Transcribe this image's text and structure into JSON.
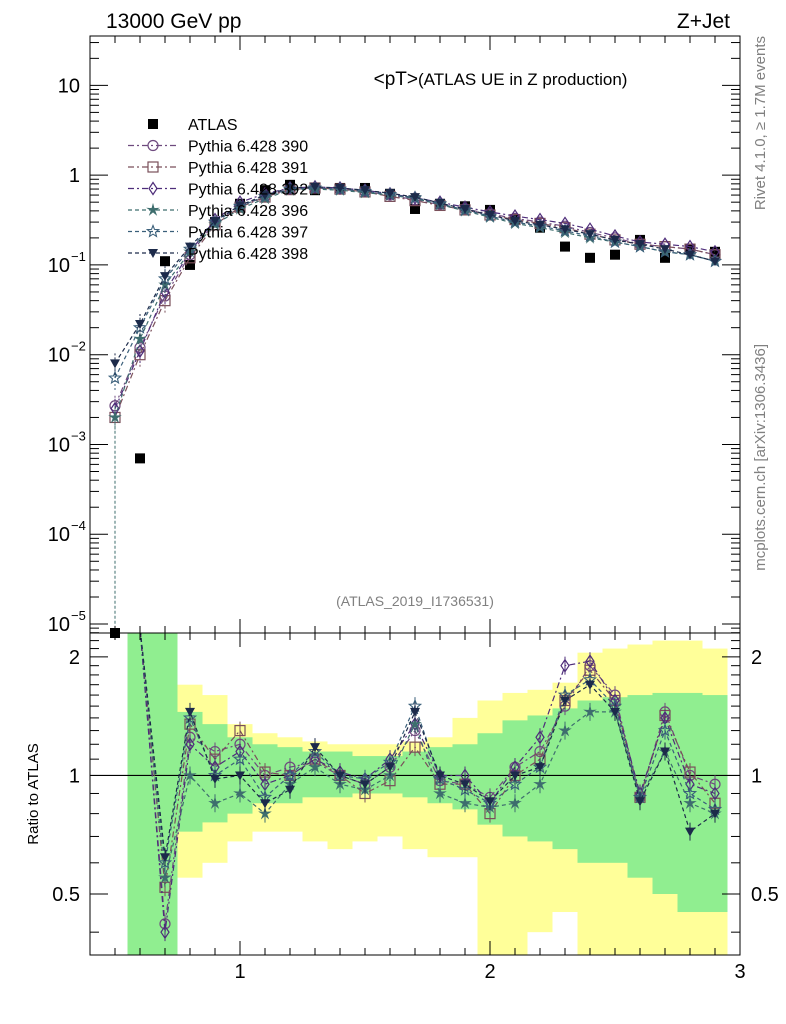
{
  "header": {
    "energy": "13000 GeV pp",
    "process": "Z+Jet"
  },
  "side_text": {
    "rivet": "Rivet 4.1.0, ≥ 1.7M events",
    "mcplots": "mcplots.cern.ch [arXiv:1306.3436]"
  },
  "chart_data": {
    "type": "scatter",
    "title": "<pT> (ATLAS UE in Z production)",
    "title_main": "<pT>",
    "title_sub": " (ATLAS UE in Z production)",
    "analysis_id": "(ATLAS_2019_I1736531)",
    "xlim": [
      0.4,
      3.0
    ],
    "x_ticks": [
      "1",
      "2",
      "3"
    ],
    "x_tick_values": [
      1,
      2,
      3
    ],
    "main_ylim_log10": [
      -5.1,
      1.55
    ],
    "main_y_ticks": [
      {
        "exp": 1,
        "label": "10"
      },
      {
        "exp": 0,
        "label": "1"
      },
      {
        "exp": -1,
        "label": "10",
        "sup": "−1"
      },
      {
        "exp": -2,
        "label": "10",
        "sup": "−2"
      },
      {
        "exp": -3,
        "label": "10",
        "sup": "−3"
      },
      {
        "exp": -4,
        "label": "10",
        "sup": "−4"
      },
      {
        "exp": -5,
        "label": "10",
        "sup": "−5"
      }
    ],
    "ratio_ylabel": "Ratio to ATLAS",
    "ratio_ylim": [
      0.35,
      2.3
    ],
    "ratio_y_ticks": [
      "0.5",
      "1",
      "2"
    ],
    "ratio_y_tick_values": [
      0.5,
      1,
      2
    ],
    "x": [
      0.5,
      0.6,
      0.7,
      0.8,
      0.9,
      1.0,
      1.1,
      1.2,
      1.3,
      1.4,
      1.5,
      1.6,
      1.7,
      1.8,
      1.9,
      2.0,
      2.1,
      2.2,
      2.3,
      2.4,
      2.5,
      2.6,
      2.7,
      2.8,
      2.9
    ],
    "bin_edges": [
      0.55,
      0.65,
      0.75,
      0.85,
      0.95,
      1.05,
      1.15,
      1.25,
      1.35,
      1.45,
      1.55,
      1.65,
      1.75,
      1.85,
      1.95,
      2.05,
      2.15,
      2.25,
      2.35,
      2.45,
      2.55,
      2.65,
      2.75,
      2.85,
      2.95
    ],
    "band_inner_lo": [
      0.3,
      0.3,
      0.72,
      0.76,
      0.8,
      0.85,
      0.85,
      0.88,
      0.88,
      0.9,
      0.9,
      0.88,
      0.85,
      0.82,
      0.75,
      0.7,
      0.68,
      0.65,
      0.6,
      0.6,
      0.55,
      0.5,
      0.45,
      0.45
    ],
    "band_inner_hi": [
      2.3,
      2.3,
      1.45,
      1.35,
      1.25,
      1.2,
      1.18,
      1.15,
      1.15,
      1.12,
      1.12,
      1.15,
      1.18,
      1.2,
      1.28,
      1.38,
      1.42,
      1.48,
      1.55,
      1.58,
      1.6,
      1.62,
      1.62,
      1.6
    ],
    "band_outer_lo": [
      0.3,
      0.3,
      0.55,
      0.6,
      0.68,
      0.72,
      0.72,
      0.68,
      0.65,
      0.68,
      0.7,
      0.65,
      0.62,
      0.62,
      0.35,
      0.35,
      0.4,
      0.45,
      0.35,
      0.35,
      0.3,
      0.35,
      0.3,
      0.35
    ],
    "band_outer_hi": [
      2.3,
      2.3,
      1.7,
      1.6,
      1.35,
      1.28,
      1.25,
      1.22,
      1.2,
      1.2,
      1.2,
      1.22,
      1.25,
      1.4,
      1.55,
      1.62,
      1.65,
      1.72,
      2.05,
      2.1,
      2.15,
      2.2,
      2.2,
      2.1
    ],
    "series": [
      {
        "name": "ATLAS",
        "marker": "square-filled",
        "color": "#000000",
        "values": [
          7.2e-06,
          0.0007,
          0.11,
          0.1,
          0.3,
          0.48,
          0.68,
          0.78,
          0.68,
          0.72,
          0.72,
          0.62,
          0.42,
          0.48,
          0.45,
          0.41,
          0.32,
          0.26,
          0.16,
          0.12,
          0.13,
          0.19,
          0.12,
          0.15,
          0.14
        ]
      },
      {
        "name": "Pythia 6.428 390",
        "marker": "circle-open",
        "color": "#6e4a7e",
        "dash": "6,3,2,3",
        "values": [
          0.0027,
          0.012,
          0.045,
          0.13,
          0.3,
          0.45,
          0.58,
          0.7,
          0.72,
          0.7,
          0.66,
          0.6,
          0.53,
          0.47,
          0.42,
          0.37,
          0.33,
          0.3,
          0.27,
          0.23,
          0.2,
          0.17,
          0.16,
          0.15,
          0.13
        ],
        "ratio": [
          null,
          null,
          0.42,
          1.25,
          1.15,
          1.2,
          1.0,
          1.05,
          1.08,
          1.0,
          0.95,
          1.05,
          1.3,
          0.97,
          0.95,
          0.88,
          1.05,
          1.15,
          1.5,
          1.9,
          1.6,
          0.88,
          1.45,
          1.0,
          0.95
        ]
      },
      {
        "name": "Pythia 6.428 391",
        "marker": "square-open",
        "color": "#7a4f5a",
        "dash": "6,3,2,3",
        "values": [
          0.002,
          0.01,
          0.04,
          0.12,
          0.28,
          0.44,
          0.57,
          0.69,
          0.72,
          0.7,
          0.65,
          0.58,
          0.52,
          0.46,
          0.41,
          0.36,
          0.32,
          0.29,
          0.26,
          0.22,
          0.19,
          0.17,
          0.16,
          0.15,
          0.13
        ],
        "ratio": [
          null,
          null,
          0.52,
          1.35,
          1.1,
          1.3,
          1.02,
          1.0,
          1.1,
          1.0,
          0.9,
          0.97,
          1.18,
          0.95,
          0.95,
          0.8,
          1.0,
          1.1,
          1.55,
          1.85,
          1.55,
          0.88,
          1.42,
          1.02,
          0.85
        ]
      },
      {
        "name": "Pythia 6.428 392",
        "marker": "diamond-open",
        "color": "#4e2d7a",
        "dash": "6,3,2,3",
        "values": [
          0.0025,
          0.011,
          0.05,
          0.14,
          0.32,
          0.5,
          0.62,
          0.72,
          0.74,
          0.72,
          0.68,
          0.62,
          0.56,
          0.5,
          0.44,
          0.39,
          0.35,
          0.32,
          0.29,
          0.25,
          0.21,
          0.18,
          0.17,
          0.16,
          0.14
        ],
        "ratio": [
          null,
          null,
          0.4,
          1.2,
          1.05,
          1.15,
          0.95,
          1.0,
          1.1,
          1.02,
          0.98,
          1.1,
          1.35,
          1.0,
          1.0,
          0.85,
          1.05,
          1.25,
          1.9,
          1.95,
          1.55,
          0.9,
          1.4,
          0.95,
          0.9
        ]
      },
      {
        "name": "Pythia 6.428 396",
        "marker": "star-thin",
        "color": "#3e6e6e",
        "dash": "4,3",
        "values": [
          0.002,
          0.015,
          0.06,
          0.14,
          0.28,
          0.42,
          0.55,
          0.68,
          0.7,
          0.68,
          0.64,
          0.6,
          0.55,
          0.47,
          0.4,
          0.34,
          0.29,
          0.26,
          0.23,
          0.2,
          0.18,
          0.16,
          0.14,
          0.13,
          0.11
        ],
        "ratio": [
          null,
          null,
          0.55,
          1.0,
          0.85,
          0.9,
          0.8,
          0.95,
          1.05,
          0.95,
          0.92,
          1.0,
          1.35,
          0.9,
          0.85,
          0.83,
          0.85,
          0.95,
          1.3,
          1.45,
          1.45,
          0.88,
          1.15,
          0.85,
          0.8
        ]
      },
      {
        "name": "Pythia 6.428 397",
        "marker": "star",
        "color": "#3a5f7a",
        "dash": "4,3",
        "values": [
          0.0055,
          0.02,
          0.07,
          0.15,
          0.3,
          0.45,
          0.58,
          0.7,
          0.72,
          0.7,
          0.66,
          0.61,
          0.56,
          0.48,
          0.41,
          0.35,
          0.3,
          0.27,
          0.24,
          0.21,
          0.18,
          0.16,
          0.14,
          0.13,
          0.11
        ],
        "ratio": [
          null,
          null,
          0.6,
          1.4,
          1.0,
          1.1,
          0.88,
          1.0,
          1.15,
          1.0,
          0.98,
          1.08,
          1.5,
          0.98,
          0.92,
          0.85,
          0.95,
          1.05,
          1.6,
          1.75,
          1.5,
          0.88,
          1.3,
          0.9,
          0.82
        ]
      },
      {
        "name": "Pythia 6.428 398",
        "marker": "triangle-down-filled",
        "color": "#1c2a4a",
        "dash": "4,3",
        "values": [
          0.008,
          0.022,
          0.075,
          0.16,
          0.31,
          0.46,
          0.6,
          0.72,
          0.74,
          0.72,
          0.68,
          0.63,
          0.57,
          0.49,
          0.42,
          0.36,
          0.31,
          0.28,
          0.25,
          0.22,
          0.19,
          0.17,
          0.15,
          0.13,
          0.11
        ],
        "ratio": [
          null,
          null,
          0.62,
          1.45,
          0.98,
          1.0,
          0.85,
          0.92,
          1.18,
          1.0,
          0.95,
          1.05,
          1.45,
          1.0,
          0.95,
          0.86,
          1.0,
          1.05,
          1.55,
          1.7,
          1.45,
          0.86,
          1.15,
          0.72,
          0.8
        ]
      }
    ]
  }
}
